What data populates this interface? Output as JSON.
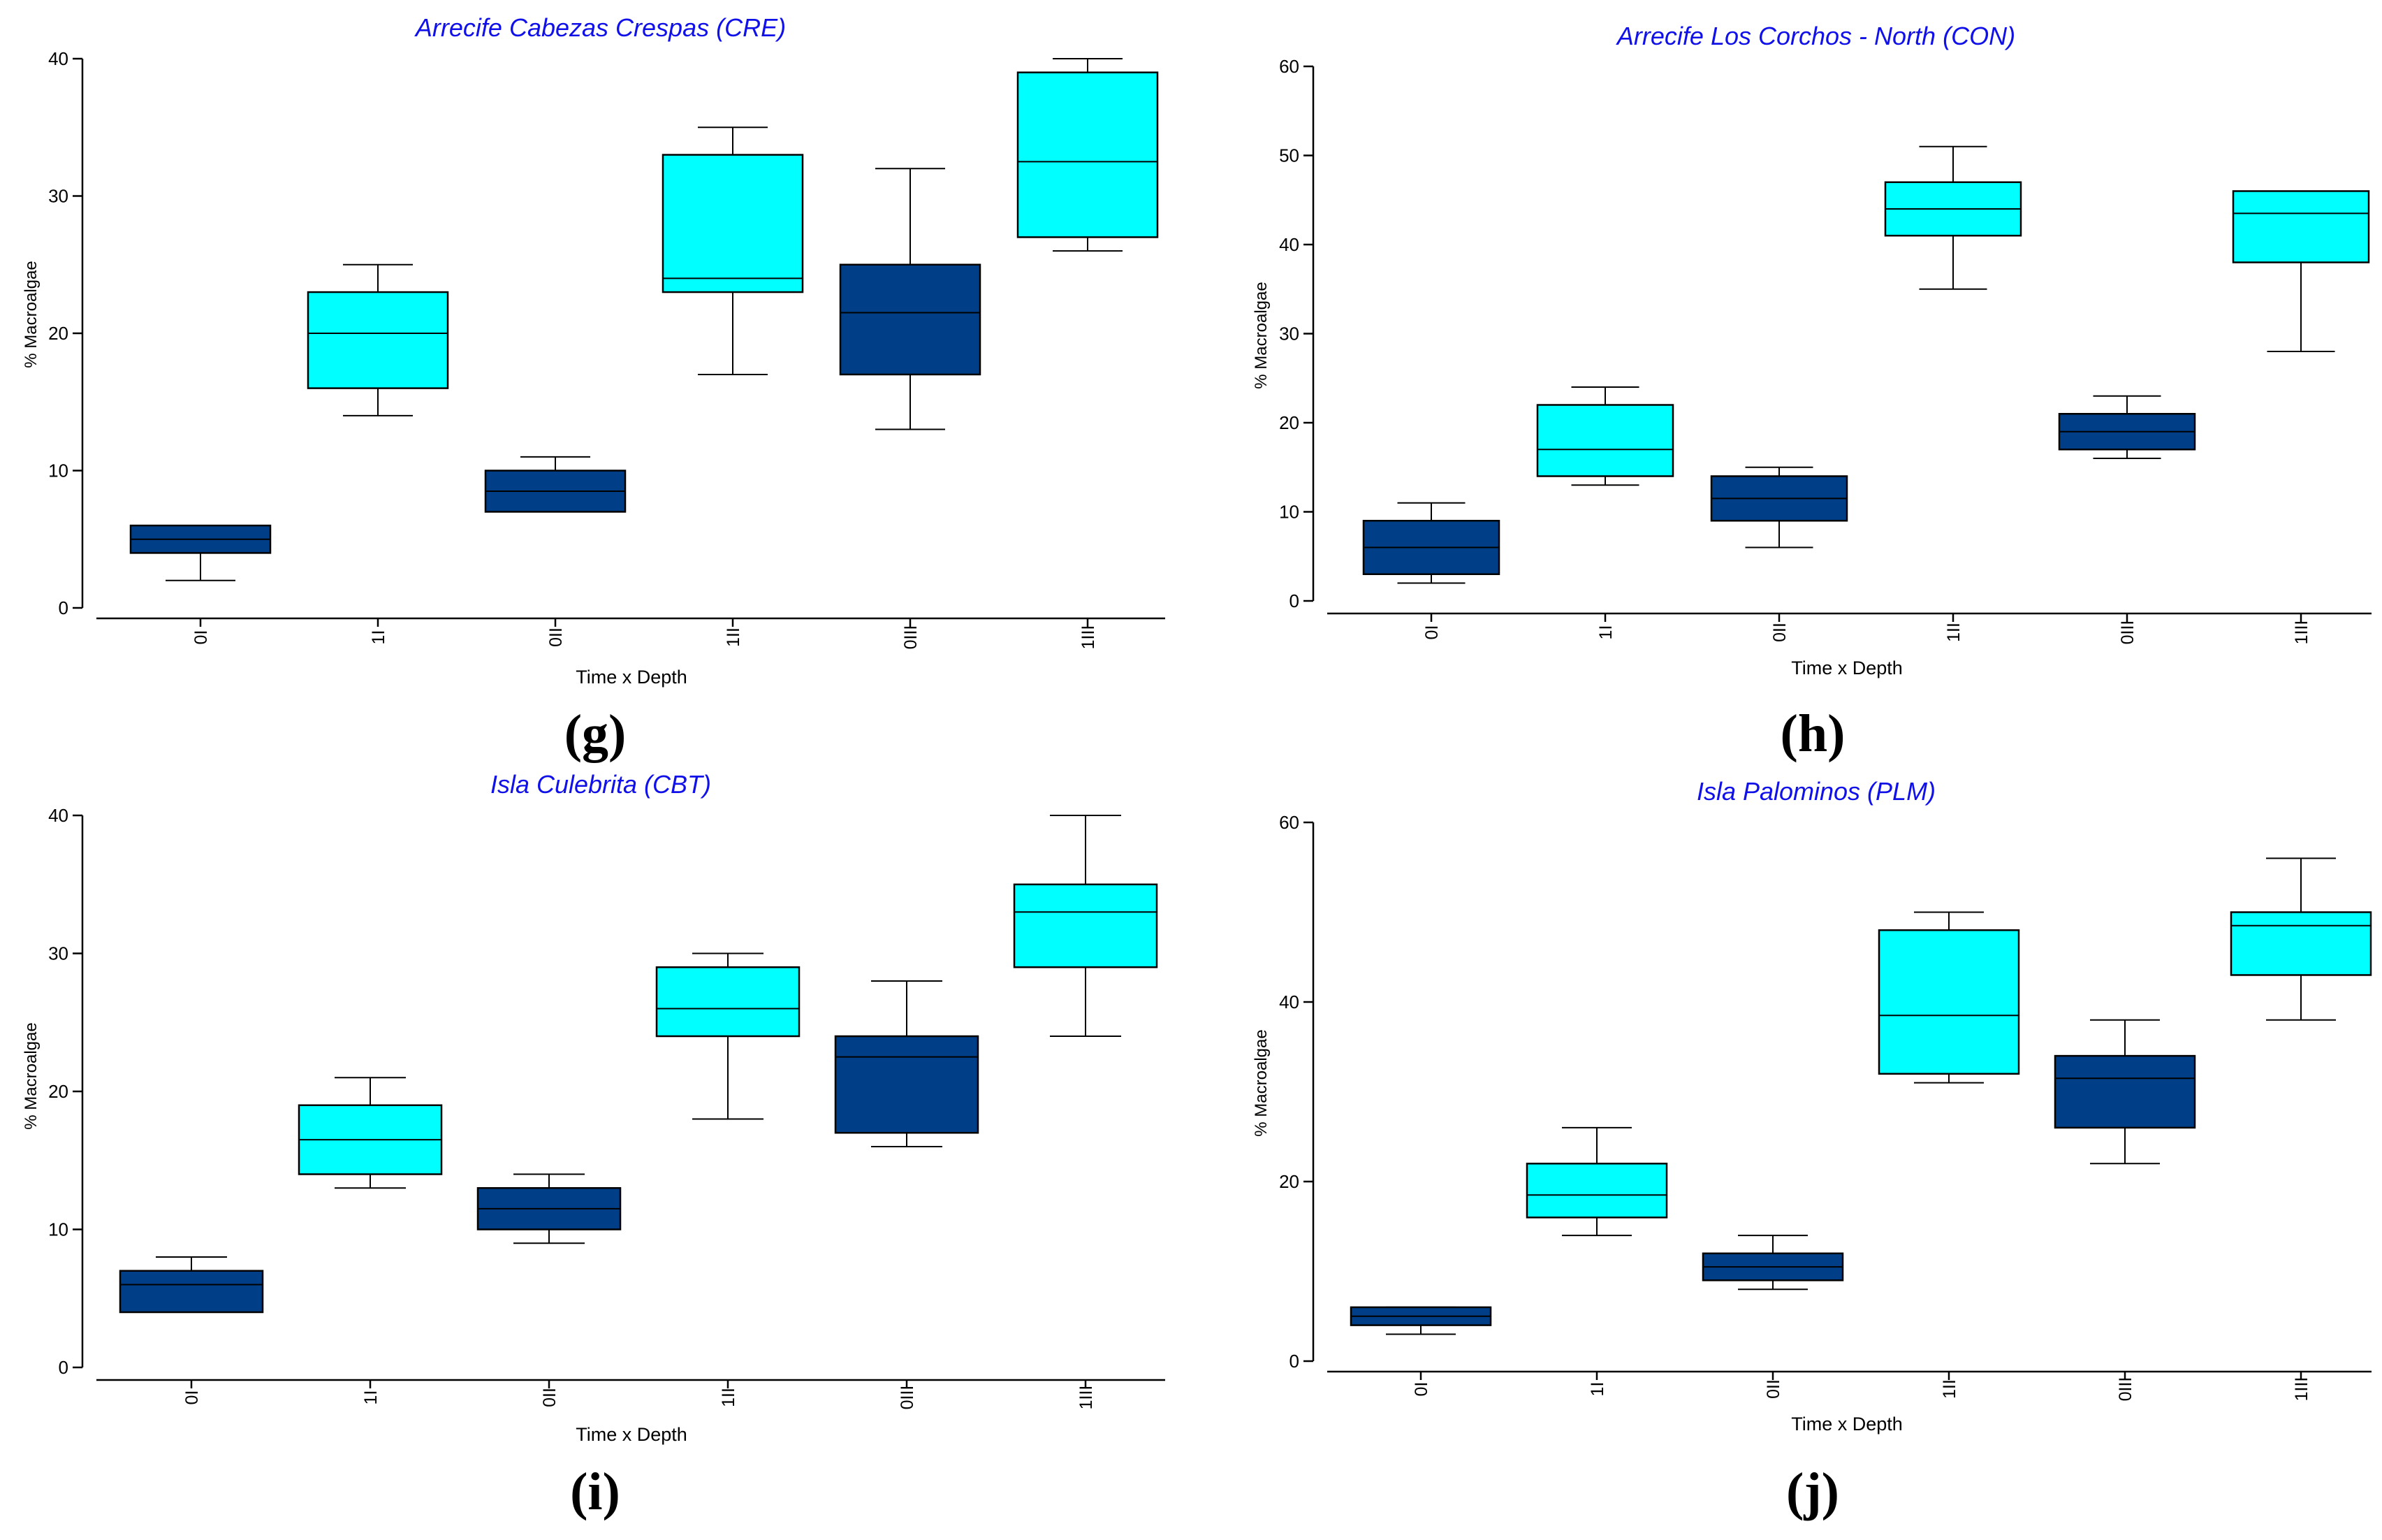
{
  "colors": {
    "dark_box": "#003F87",
    "light_box": "#00FFFF",
    "title": "#1010E8",
    "axis": "#000000"
  },
  "chart_data": [
    {
      "type": "boxplot",
      "panel_label": "(g)",
      "title": "Arrecife Cabezas Crespas (CRE)",
      "xlabel": "Time x Depth",
      "ylabel": "% Macroalgae",
      "ylim": [
        0,
        40
      ],
      "yticks": [
        0,
        10,
        20,
        30,
        40
      ],
      "categories": [
        "0I",
        "1I",
        "0II",
        "1II",
        "0III",
        "1III"
      ],
      "boxes": [
        {
          "label": "0I",
          "color": "dark",
          "min": 2,
          "q1": 4,
          "median": 5,
          "q3": 6,
          "max": 6
        },
        {
          "label": "1I",
          "color": "light",
          "min": 14,
          "q1": 16,
          "median": 20,
          "q3": 23,
          "max": 25
        },
        {
          "label": "0II",
          "color": "dark",
          "min": 7,
          "q1": 7,
          "median": 8.5,
          "q3": 10,
          "max": 11
        },
        {
          "label": "1II",
          "color": "light",
          "min": 17,
          "q1": 23,
          "median": 24,
          "q3": 33,
          "max": 35
        },
        {
          "label": "0III",
          "color": "dark",
          "min": 13,
          "q1": 17,
          "median": 21.5,
          "q3": 25,
          "max": 32
        },
        {
          "label": "1III",
          "color": "light",
          "min": 26,
          "q1": 27,
          "median": 32.5,
          "q3": 39,
          "max": 40
        }
      ]
    },
    {
      "type": "boxplot",
      "panel_label": "(h)",
      "title": "Arrecife Los Corchos - North (CON)",
      "xlabel": "Time x Depth",
      "ylabel": "% Macroalgae",
      "ylim": [
        0,
        60
      ],
      "yticks": [
        0,
        10,
        20,
        30,
        40,
        50,
        60
      ],
      "categories": [
        "0I",
        "1I",
        "0II",
        "1II",
        "0III",
        "1III"
      ],
      "boxes": [
        {
          "label": "0I",
          "color": "dark",
          "min": 2,
          "q1": 3,
          "median": 6,
          "q3": 9,
          "max": 11
        },
        {
          "label": "1I",
          "color": "light",
          "min": 13,
          "q1": 14,
          "median": 17,
          "q3": 22,
          "max": 24
        },
        {
          "label": "0II",
          "color": "dark",
          "min": 6,
          "q1": 9,
          "median": 11.5,
          "q3": 14,
          "max": 15
        },
        {
          "label": "1II",
          "color": "light",
          "min": 35,
          "q1": 41,
          "median": 44,
          "q3": 47,
          "max": 51
        },
        {
          "label": "0III",
          "color": "dark",
          "min": 16,
          "q1": 17,
          "median": 19,
          "q3": 21,
          "max": 23
        },
        {
          "label": "1III",
          "color": "light",
          "min": 28,
          "q1": 38,
          "median": 43.5,
          "q3": 46,
          "max": 46
        }
      ]
    },
    {
      "type": "boxplot",
      "panel_label": "(i)",
      "title": "Isla Culebrita (CBT)",
      "xlabel": "Time x Depth",
      "ylabel": "% Macroalgae",
      "ylim": [
        0,
        40
      ],
      "yticks": [
        0,
        10,
        20,
        30,
        40
      ],
      "categories": [
        "0I",
        "1I",
        "0II",
        "1II",
        "0III",
        "1III"
      ],
      "boxes": [
        {
          "label": "0I",
          "color": "dark",
          "min": 4,
          "q1": 4,
          "median": 6,
          "q3": 7,
          "max": 8
        },
        {
          "label": "1I",
          "color": "light",
          "min": 13,
          "q1": 14,
          "median": 16.5,
          "q3": 19,
          "max": 21
        },
        {
          "label": "0II",
          "color": "dark",
          "min": 9,
          "q1": 10,
          "median": 11.5,
          "q3": 13,
          "max": 14
        },
        {
          "label": "1II",
          "color": "light",
          "min": 18,
          "q1": 24,
          "median": 26,
          "q3": 29,
          "max": 30
        },
        {
          "label": "0III",
          "color": "dark",
          "min": 16,
          "q1": 17,
          "median": 22.5,
          "q3": 24,
          "max": 28
        },
        {
          "label": "1III",
          "color": "light",
          "min": 24,
          "q1": 29,
          "median": 33,
          "q3": 35,
          "max": 40
        }
      ]
    },
    {
      "type": "boxplot",
      "panel_label": "(j)",
      "title": "Isla Palominos (PLM)",
      "xlabel": "Time x Depth",
      "ylabel": "% Macroalgae",
      "ylim": [
        0,
        60
      ],
      "yticks": [
        0,
        20,
        40,
        60
      ],
      "categories": [
        "0I",
        "1I",
        "0II",
        "1II",
        "0III",
        "1III"
      ],
      "boxes": [
        {
          "label": "0I",
          "color": "dark",
          "min": 3,
          "q1": 4,
          "median": 5,
          "q3": 6,
          "max": 6
        },
        {
          "label": "1I",
          "color": "light",
          "min": 14,
          "q1": 16,
          "median": 18.5,
          "q3": 22,
          "max": 26
        },
        {
          "label": "0II",
          "color": "dark",
          "min": 8,
          "q1": 9,
          "median": 10.5,
          "q3": 12,
          "max": 14
        },
        {
          "label": "1II",
          "color": "light",
          "min": 31,
          "q1": 32,
          "median": 38.5,
          "q3": 48,
          "max": 50
        },
        {
          "label": "0III",
          "color": "dark",
          "min": 22,
          "q1": 26,
          "median": 31.5,
          "q3": 34,
          "max": 38
        },
        {
          "label": "1III",
          "color": "light",
          "min": 38,
          "q1": 43,
          "median": 48.5,
          "q3": 50,
          "max": 56
        }
      ]
    }
  ]
}
